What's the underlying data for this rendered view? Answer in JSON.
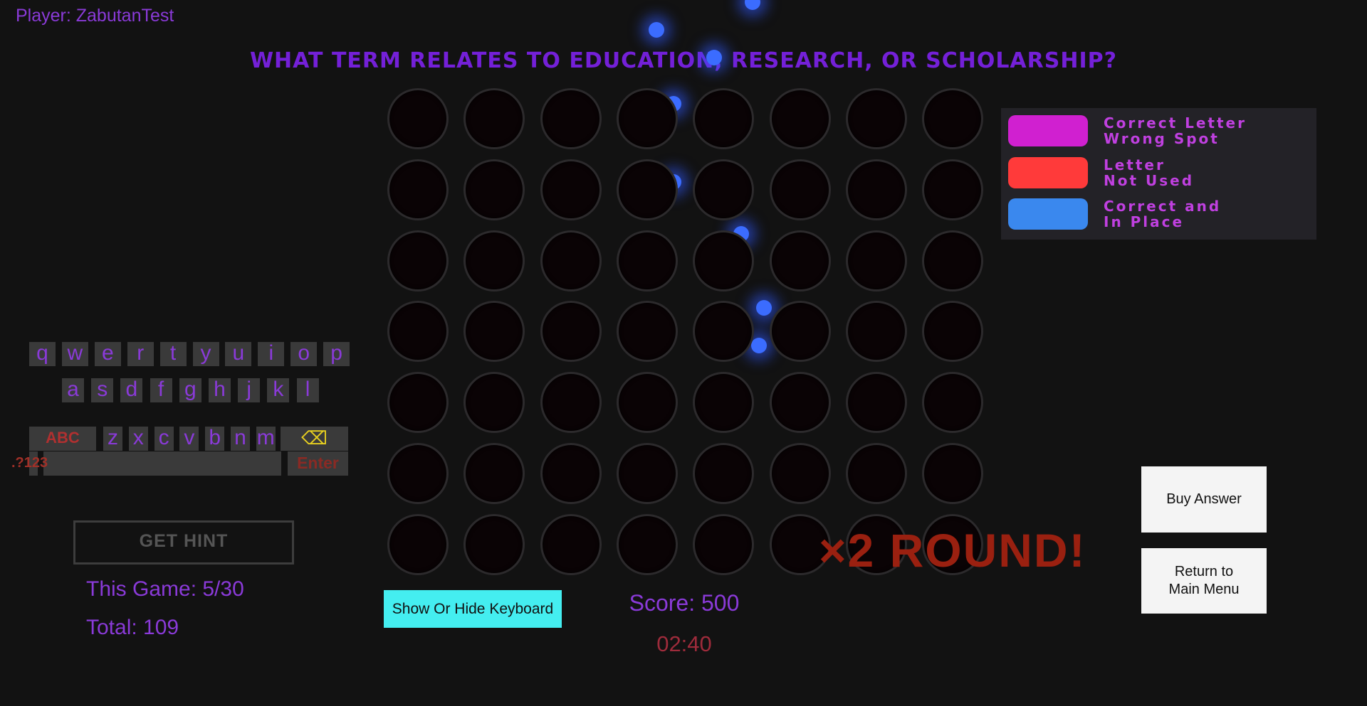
{
  "player": "Player: ZabutanTest",
  "question": "WHAT TERM RELATES TO EDUCATION, RESEARCH, OR SCHOLARSHIP?",
  "grid": {
    "rows": 7,
    "cols": 8
  },
  "legend": [
    {
      "label": "Correct Letter\nWrong Spot",
      "color": "#d020d0"
    },
    {
      "label": "Letter\nNot Used",
      "color": "#ff3a3a"
    },
    {
      "label": "Correct and\nIn Place",
      "color": "#3a88ee"
    }
  ],
  "keyboard": {
    "row1": [
      "q",
      "w",
      "e",
      "r",
      "t",
      "y",
      "u",
      "i",
      "o",
      "p"
    ],
    "row2": [
      "a",
      "s",
      "d",
      "f",
      "g",
      "h",
      "j",
      "k",
      "l"
    ],
    "row3": [
      "z",
      "x",
      "c",
      "v",
      "b",
      "n",
      "m"
    ],
    "abc": "ABC",
    "symbols": ".?123",
    "enter": "Enter",
    "backspace_icon": "backspace-icon"
  },
  "hint_button": "GET HINT",
  "this_game": "This Game: 5/30",
  "total": "Total: 109",
  "toggle_keyboard": "Show Or Hide Keyboard",
  "score": "Score: 500",
  "timer": "02:40",
  "round_banner": "×2 ROUND!",
  "buy_answer": "Buy Answer",
  "return_menu": "Return to\nMain Menu"
}
